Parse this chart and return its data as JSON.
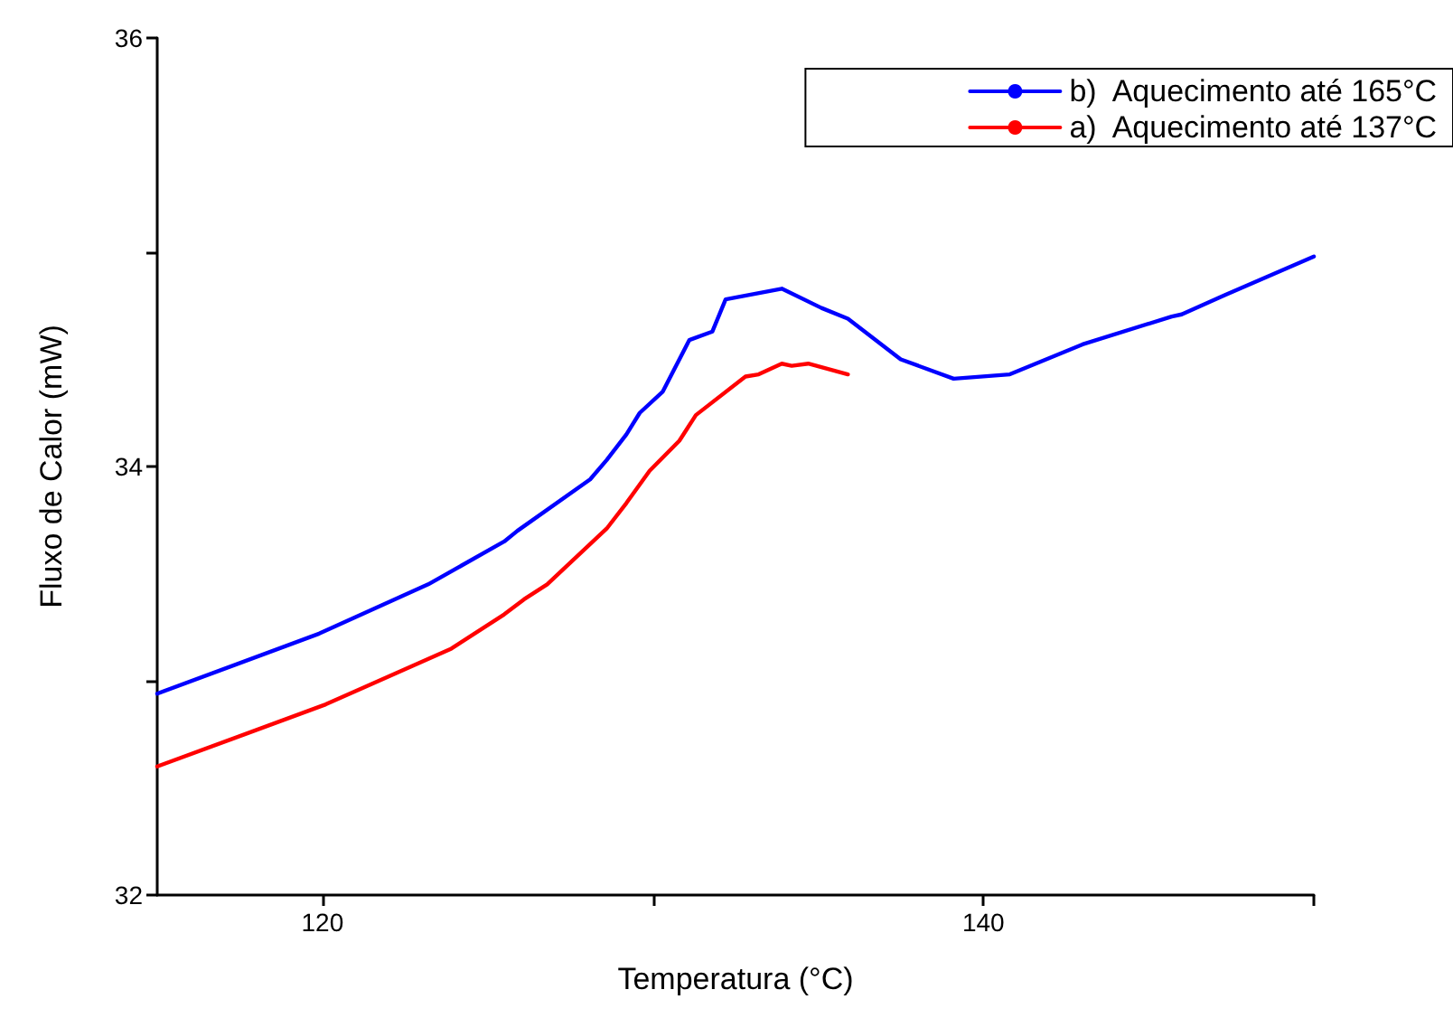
{
  "chart_data": {
    "type": "line",
    "xlabel": "Temperatura (°C)",
    "ylabel": "Fluxo de Calor (mW)",
    "xlim": [
      115,
      150
    ],
    "xticks": [
      120,
      {
        "value": 130,
        "label": null
      },
      140,
      {
        "value": 150,
        "label": null
      }
    ],
    "ylim": [
      32,
      36
    ],
    "yticks": [
      32,
      {
        "value": 33,
        "label": null
      },
      34,
      {
        "value": 35,
        "label": null
      },
      36
    ],
    "grid": false,
    "legend": "top right",
    "marker": "none",
    "line_style": "solid",
    "series": [
      {
        "name": "b)  Aquecimento até 165°C",
        "color": "#0000ff",
        "x": [
          115,
          119.9,
          123.2,
          125.5,
          125.9,
          128.1,
          128.6,
          129.2,
          129.6,
          130.3,
          131.1,
          131.8,
          132.2,
          133.9,
          135.1,
          135.9,
          137.5,
          139.1,
          140.8,
          143.0,
          145.7,
          146.0,
          147.3,
          150
        ],
        "values": [
          32.94,
          33.22,
          33.45,
          33.65,
          33.7,
          33.94,
          34.03,
          34.15,
          34.25,
          34.35,
          34.59,
          34.63,
          34.78,
          34.83,
          34.74,
          34.69,
          34.5,
          34.41,
          34.43,
          34.57,
          34.7,
          34.71,
          34.8,
          34.98
        ]
      },
      {
        "name": "a)  Aquecimento até 137°C",
        "color": "#ff0000",
        "x": [
          115,
          120.1,
          123.9,
          125.5,
          126.1,
          126.8,
          128.6,
          129.2,
          129.9,
          130.8,
          131.3,
          132.8,
          133.2,
          133.9,
          134.2,
          134.7,
          135.9
        ],
        "values": [
          32.6,
          32.89,
          33.15,
          33.31,
          33.38,
          33.45,
          33.71,
          33.83,
          33.98,
          34.12,
          34.24,
          34.42,
          34.43,
          34.48,
          34.47,
          34.48,
          34.43
        ]
      }
    ]
  }
}
